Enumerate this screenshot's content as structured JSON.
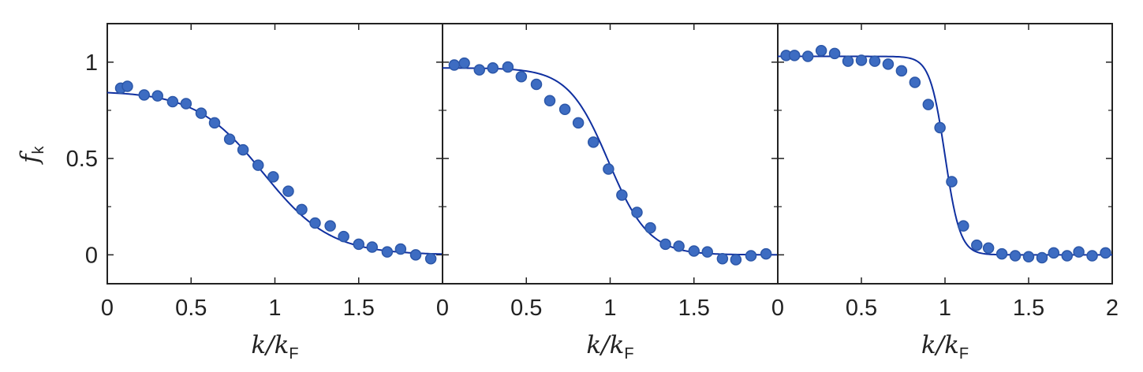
{
  "chart_data": [
    {
      "type": "scatter",
      "panel": "left",
      "ylabel": "f",
      "ylabel_sub": "k",
      "xlabel": "k/k",
      "xlabel_sub": "F",
      "xlim": [
        0,
        2
      ],
      "ylim": [
        -0.15,
        1.2
      ],
      "x_ticks": [
        0,
        0.5,
        1,
        1.5
      ],
      "x_tick_labels": [
        "0",
        "0.5",
        "1",
        "1.5"
      ],
      "y_ticks": [
        0,
        0.5,
        1
      ],
      "y_tick_labels": [
        "0",
        "0.5",
        "1"
      ],
      "points": [
        [
          0.08,
          0.865
        ],
        [
          0.12,
          0.875
        ],
        [
          0.22,
          0.83
        ],
        [
          0.3,
          0.825
        ],
        [
          0.39,
          0.795
        ],
        [
          0.47,
          0.785
        ],
        [
          0.56,
          0.735
        ],
        [
          0.64,
          0.685
        ],
        [
          0.73,
          0.6
        ],
        [
          0.81,
          0.545
        ],
        [
          0.9,
          0.465
        ],
        [
          0.99,
          0.405
        ],
        [
          1.08,
          0.33
        ],
        [
          1.16,
          0.235
        ],
        [
          1.24,
          0.165
        ],
        [
          1.33,
          0.15
        ],
        [
          1.41,
          0.095
        ],
        [
          1.5,
          0.055
        ],
        [
          1.58,
          0.04
        ],
        [
          1.67,
          0.015
        ],
        [
          1.75,
          0.03
        ],
        [
          1.84,
          0.0
        ],
        [
          1.93,
          -0.02
        ]
      ],
      "fit": {
        "amplitude": 0.85,
        "center": 0.93,
        "width": 0.2
      }
    },
    {
      "type": "scatter",
      "panel": "middle",
      "xlabel": "k/k",
      "xlabel_sub": "F",
      "xlim": [
        0,
        2
      ],
      "ylim": [
        -0.15,
        1.2
      ],
      "x_ticks": [
        0,
        0.5,
        1,
        1.5
      ],
      "x_tick_labels": [
        "0",
        "0.5",
        "1",
        "1.5"
      ],
      "y_ticks": [
        0,
        0.5,
        1
      ],
      "points": [
        [
          0.07,
          0.985
        ],
        [
          0.13,
          0.995
        ],
        [
          0.22,
          0.96
        ],
        [
          0.3,
          0.97
        ],
        [
          0.39,
          0.975
        ],
        [
          0.47,
          0.925
        ],
        [
          0.56,
          0.885
        ],
        [
          0.64,
          0.8
        ],
        [
          0.73,
          0.755
        ],
        [
          0.81,
          0.685
        ],
        [
          0.9,
          0.585
        ],
        [
          0.99,
          0.445
        ],
        [
          1.07,
          0.31
        ],
        [
          1.16,
          0.22
        ],
        [
          1.24,
          0.14
        ],
        [
          1.33,
          0.055
        ],
        [
          1.41,
          0.045
        ],
        [
          1.5,
          0.02
        ],
        [
          1.58,
          0.015
        ],
        [
          1.67,
          -0.02
        ],
        [
          1.75,
          -0.025
        ],
        [
          1.84,
          -0.005
        ],
        [
          1.93,
          0.005
        ]
      ],
      "fit": {
        "amplitude": 0.97,
        "center": 0.99,
        "width": 0.12
      }
    },
    {
      "type": "scatter",
      "panel": "right",
      "xlabel": "k/k",
      "xlabel_sub": "F",
      "xlim": [
        0,
        2
      ],
      "ylim": [
        -0.15,
        1.2
      ],
      "x_ticks": [
        0,
        0.5,
        1,
        1.5,
        2
      ],
      "x_tick_labels": [
        "0",
        "0.5",
        "1",
        "1.5",
        "2"
      ],
      "y_ticks": [
        0,
        0.5,
        1
      ],
      "points": [
        [
          0.05,
          1.035
        ],
        [
          0.1,
          1.035
        ],
        [
          0.18,
          1.03
        ],
        [
          0.26,
          1.06
        ],
        [
          0.34,
          1.045
        ],
        [
          0.42,
          1.005
        ],
        [
          0.5,
          1.01
        ],
        [
          0.58,
          1.005
        ],
        [
          0.66,
          0.99
        ],
        [
          0.74,
          0.955
        ],
        [
          0.82,
          0.895
        ],
        [
          0.9,
          0.78
        ],
        [
          0.97,
          0.66
        ],
        [
          1.04,
          0.38
        ],
        [
          1.11,
          0.15
        ],
        [
          1.19,
          0.05
        ],
        [
          1.26,
          0.035
        ],
        [
          1.34,
          0.005
        ],
        [
          1.42,
          -0.005
        ],
        [
          1.5,
          -0.01
        ],
        [
          1.58,
          -0.015
        ],
        [
          1.65,
          0.01
        ],
        [
          1.73,
          -0.005
        ],
        [
          1.8,
          0.015
        ],
        [
          1.88,
          -0.005
        ],
        [
          1.96,
          0.01
        ]
      ],
      "fit": {
        "amplitude": 1.03,
        "center": 1.0,
        "width": 0.045
      }
    }
  ],
  "colors": {
    "marker_fill": "#3d6cc2",
    "marker_edge": "#2c57a8",
    "fit_line": "#1030a0",
    "axis": "#222222"
  }
}
